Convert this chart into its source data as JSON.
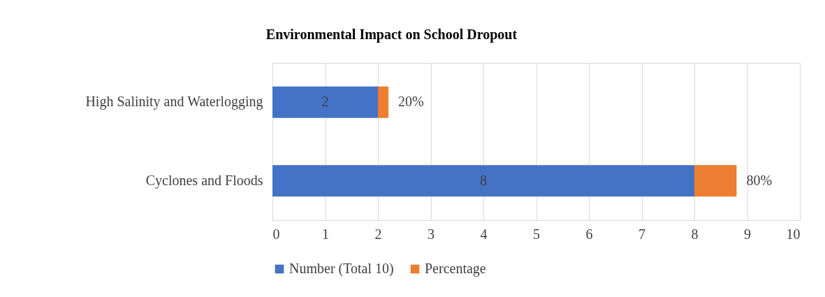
{
  "chart_data": {
    "type": "bar",
    "orientation": "horizontal",
    "stacked": true,
    "title": "Environmental Impact on School Dropout",
    "categories": [
      "High Salinity and Waterlogging",
      "Cyclones and Floods"
    ],
    "series": [
      {
        "name": "Number (Total 10)",
        "color": "#4472c4",
        "values": [
          2,
          8
        ],
        "value_labels": [
          "2",
          "8"
        ]
      },
      {
        "name": "Percentage",
        "color": "#ed7d31",
        "values": [
          0.2,
          0.8
        ],
        "value_labels": [
          "20%",
          "80%"
        ]
      }
    ],
    "xlim": [
      0,
      10
    ],
    "xticks": [
      0,
      1,
      2,
      3,
      4,
      5,
      6,
      7,
      8,
      9,
      10
    ],
    "grid": "x",
    "legend": "bottom"
  }
}
